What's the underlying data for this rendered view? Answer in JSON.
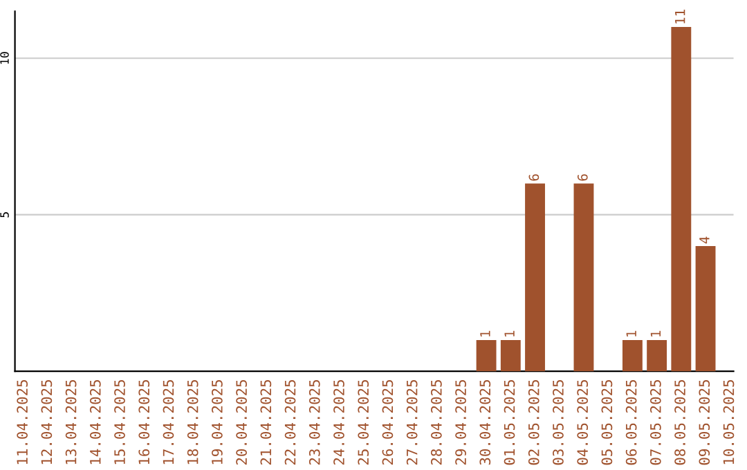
{
  "chart_data": {
    "type": "bar",
    "categories": [
      "11.04.2025",
      "12.04.2025",
      "13.04.2025",
      "14.04.2025",
      "15.04.2025",
      "16.04.2025",
      "17.04.2025",
      "18.04.2025",
      "19.04.2025",
      "20.04.2025",
      "21.04.2025",
      "22.04.2025",
      "23.04.2025",
      "24.04.2025",
      "25.04.2025",
      "26.04.2025",
      "27.04.2025",
      "28.04.2025",
      "29.04.2025",
      "30.04.2025",
      "01.05.2025",
      "02.05.2025",
      "03.05.2025",
      "04.05.2025",
      "05.05.2025",
      "06.05.2025",
      "07.05.2025",
      "08.05.2025",
      "09.05.2025",
      "10.05.2025"
    ],
    "values": [
      0,
      0,
      0,
      0,
      0,
      0,
      0,
      0,
      0,
      0,
      0,
      0,
      0,
      0,
      0,
      0,
      0,
      0,
      0,
      1,
      1,
      6,
      0,
      6,
      0,
      1,
      1,
      11,
      4,
      0
    ],
    "value_labels": [
      null,
      null,
      null,
      null,
      null,
      null,
      null,
      null,
      null,
      null,
      null,
      null,
      null,
      null,
      null,
      null,
      null,
      null,
      null,
      "1",
      "1",
      "6",
      null,
      "6",
      null,
      "1",
      "1",
      "11",
      "4",
      null
    ],
    "color": "#a0522d",
    "ylim": [
      0,
      11.5
    ],
    "yticks": [
      5,
      10
    ],
    "grid": "y",
    "legend": false
  }
}
